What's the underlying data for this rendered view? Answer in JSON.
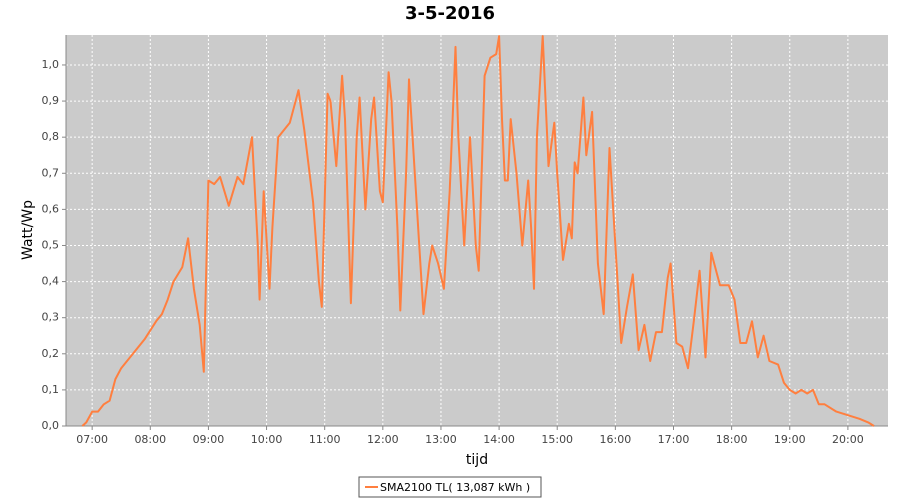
{
  "chart_data": {
    "type": "line",
    "title": "3-5-2016",
    "x_label": "tijd",
    "y_label": "Watt/Wp",
    "x": [
      6.83,
      6.9,
      7.0,
      7.1,
      7.2,
      7.3,
      7.4,
      7.5,
      7.7,
      7.9,
      8.1,
      8.2,
      8.3,
      8.4,
      8.55,
      8.65,
      8.75,
      8.85,
      8.92,
      9.0,
      9.1,
      9.2,
      9.35,
      9.5,
      9.6,
      9.75,
      9.85,
      9.88,
      9.95,
      10.05,
      10.1,
      10.2,
      10.4,
      10.55,
      10.65,
      10.8,
      10.9,
      10.95,
      11.05,
      11.1,
      11.2,
      11.3,
      11.35,
      11.45,
      11.55,
      11.6,
      11.7,
      11.8,
      11.85,
      11.95,
      12.0,
      12.1,
      12.15,
      12.25,
      12.3,
      12.4,
      12.45,
      12.55,
      12.7,
      12.8,
      12.85,
      12.95,
      13.05,
      13.15,
      13.25,
      13.3,
      13.4,
      13.5,
      13.55,
      13.6,
      13.65,
      13.75,
      13.85,
      13.95,
      14.0,
      14.05,
      14.1,
      14.15,
      14.2,
      14.3,
      14.4,
      14.5,
      14.55,
      14.6,
      14.65,
      14.75,
      14.8,
      14.85,
      14.95,
      15.0,
      15.1,
      15.2,
      15.25,
      15.3,
      15.35,
      15.45,
      15.5,
      15.6,
      15.7,
      15.75,
      15.8,
      15.9,
      16.0,
      16.1,
      16.2,
      16.3,
      16.4,
      16.5,
      16.6,
      16.7,
      16.8,
      16.9,
      16.95,
      17.05,
      17.15,
      17.25,
      17.35,
      17.45,
      17.55,
      17.65,
      17.8,
      17.95,
      18.05,
      18.15,
      18.25,
      18.35,
      18.45,
      18.55,
      18.65,
      18.8,
      18.9,
      19.0,
      19.1,
      19.2,
      19.3,
      19.4,
      19.5,
      19.6,
      19.8,
      20.0,
      20.2,
      20.35,
      20.45
    ],
    "series": [
      {
        "name": "SMA2100 TL( 13,087 kWh )",
        "color": "#ff7f3f",
        "values": [
          0,
          0.01,
          0.04,
          0.04,
          0.06,
          0.07,
          0.13,
          0.16,
          0.2,
          0.24,
          0.29,
          0.31,
          0.35,
          0.4,
          0.44,
          0.52,
          0.38,
          0.28,
          0.15,
          0.68,
          0.67,
          0.69,
          0.61,
          0.69,
          0.67,
          0.8,
          0.5,
          0.35,
          0.65,
          0.38,
          0.55,
          0.8,
          0.84,
          0.93,
          0.82,
          0.62,
          0.4,
          0.33,
          0.92,
          0.9,
          0.72,
          0.97,
          0.85,
          0.34,
          0.8,
          0.91,
          0.6,
          0.85,
          0.91,
          0.65,
          0.62,
          0.98,
          0.9,
          0.55,
          0.32,
          0.7,
          0.96,
          0.7,
          0.31,
          0.45,
          0.5,
          0.45,
          0.38,
          0.65,
          1.05,
          0.8,
          0.5,
          0.8,
          0.65,
          0.5,
          0.43,
          0.97,
          1.02,
          1.03,
          1.08,
          0.85,
          0.68,
          0.68,
          0.85,
          0.7,
          0.5,
          0.68,
          0.55,
          0.38,
          0.8,
          1.08,
          0.9,
          0.72,
          0.84,
          0.7,
          0.46,
          0.56,
          0.52,
          0.73,
          0.7,
          0.91,
          0.75,
          0.87,
          0.45,
          0.38,
          0.31,
          0.77,
          0.5,
          0.23,
          0.33,
          0.42,
          0.21,
          0.28,
          0.18,
          0.26,
          0.26,
          0.41,
          0.45,
          0.23,
          0.22,
          0.16,
          0.29,
          0.43,
          0.19,
          0.48,
          0.39,
          0.39,
          0.35,
          0.23,
          0.23,
          0.29,
          0.19,
          0.25,
          0.18,
          0.17,
          0.12,
          0.1,
          0.09,
          0.1,
          0.09,
          0.1,
          0.06,
          0.06,
          0.04,
          0.03,
          0.02,
          0.01,
          0
        ]
      }
    ],
    "xlim": [
      6.55,
      20.69
    ],
    "ylim": [
      0,
      1.083
    ],
    "xticks": [
      {
        "value": 7,
        "label": "07:00"
      },
      {
        "value": 8,
        "label": "08:00"
      },
      {
        "value": 9,
        "label": "09:00"
      },
      {
        "value": 10,
        "label": "10:00"
      },
      {
        "value": 11,
        "label": "11:00"
      },
      {
        "value": 12,
        "label": "12:00"
      },
      {
        "value": 13,
        "label": "13:00"
      },
      {
        "value": 14,
        "label": "14:00"
      },
      {
        "value": 15,
        "label": "15:00"
      },
      {
        "value": 16,
        "label": "16:00"
      },
      {
        "value": 17,
        "label": "17:00"
      },
      {
        "value": 18,
        "label": "18:00"
      },
      {
        "value": 19,
        "label": "19:00"
      },
      {
        "value": 20,
        "label": "20:00"
      }
    ],
    "yticks": [
      {
        "value": 0,
        "label": "0,0"
      },
      {
        "value": 0.1,
        "label": "0,1"
      },
      {
        "value": 0.2,
        "label": "0,2"
      },
      {
        "value": 0.3,
        "label": "0,3"
      },
      {
        "value": 0.4,
        "label": "0,4"
      },
      {
        "value": 0.5,
        "label": "0,5"
      },
      {
        "value": 0.6,
        "label": "0,6"
      },
      {
        "value": 0.7,
        "label": "0,7"
      },
      {
        "value": 0.8,
        "label": "0,8"
      },
      {
        "value": 0.9,
        "label": "0,9"
      },
      {
        "value": 1.0,
        "label": "1,0"
      }
    ],
    "grid": true
  }
}
